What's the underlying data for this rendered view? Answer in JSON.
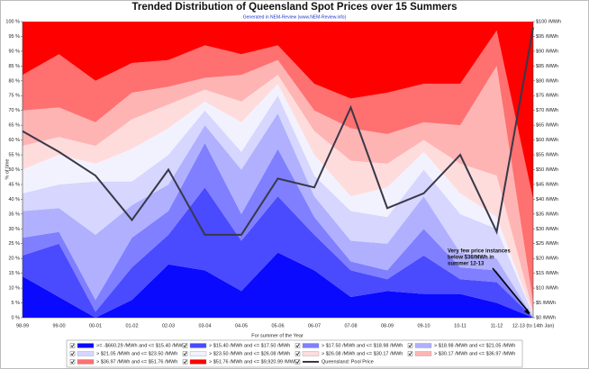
{
  "chart_data": {
    "type": "area",
    "stacked": true,
    "grid": false,
    "title": "Trended Distribution of Queensland Spot Prices over 15 Summers",
    "subtitle": "Generated in NEM-Review (www.NEM-Review.info)",
    "x_label": "For summer of the Year",
    "y_label": "% of time",
    "categories": [
      "98-99",
      "99-00",
      "00-01",
      "01-02",
      "02-03",
      "03-04",
      "04-05",
      "05-06",
      "06-07",
      "07-08",
      "08-09",
      "09-10",
      "10-11",
      "11-12",
      "12-13 (to 14th Jan)"
    ],
    "series": [
      {
        "name": ">= -$660.29 /MWh and <= $15.40 /MWh",
        "color": "#0a0aff",
        "values": [
          14,
          7,
          0,
          6,
          18,
          16,
          9,
          22,
          16,
          7,
          9,
          8,
          8,
          5,
          0
        ]
      },
      {
        "name": "> $15.40 /MWh and <= $17.50 /MWh",
        "color": "#4a4aff",
        "values": [
          7,
          18,
          2,
          11,
          10,
          28,
          17,
          19,
          12,
          9,
          4,
          13,
          5,
          7,
          0
        ]
      },
      {
        "name": "> $17.50 /MWh and <= $18.98 /MWh",
        "color": "#7f7fff",
        "values": [
          6,
          4,
          4,
          10,
          8,
          15,
          9,
          16,
          6,
          3,
          3,
          9,
          4,
          4,
          0
        ]
      },
      {
        "name": "> $18.98 /MWh and <= $21.05 /MWh",
        "color": "#b0b0ff",
        "values": [
          9,
          8,
          22,
          11,
          9,
          6,
          15,
          12,
          7,
          7,
          9,
          11,
          5,
          4,
          0
        ]
      },
      {
        "name": "> $21.05 /MWh and <= $23.50 /MWh",
        "color": "#d6d6ff",
        "values": [
          6,
          8,
          18,
          8,
          10,
          5,
          6,
          6,
          7,
          10,
          9,
          9,
          13,
          10,
          1
        ]
      },
      {
        "name": "> $23.50 /MWh and <= $26.08 /MWh",
        "color": "#f2f2ff",
        "values": [
          8,
          10,
          6,
          11,
          9,
          3,
          10,
          4,
          7,
          5,
          10,
          6,
          7,
          4,
          0
        ]
      },
      {
        "name": "> $26.08 /MWh and <= $30.17 /MWh",
        "color": "#ffdcdc",
        "values": [
          8,
          6,
          6,
          10,
          8,
          4,
          7,
          3,
          8,
          12,
          8,
          4,
          10,
          14,
          1
        ]
      },
      {
        "name": "> $30.17 /MWh and <= $36.97 /MWh",
        "color": "#ffb4b4",
        "values": [
          12,
          10,
          8,
          9,
          6,
          4,
          9,
          5,
          7,
          11,
          10,
          6,
          13,
          37,
          3
        ]
      },
      {
        "name": "> $36.97 /MWh and <= $51.76 /MWh",
        "color": "#ff7070",
        "values": [
          12,
          18,
          14,
          10,
          9,
          11,
          7,
          5,
          9,
          10,
          14,
          13,
          14,
          12,
          35
        ]
      },
      {
        "name": "> $51.76 /MWh and <= $9,920.99 /MWh",
        "color": "#ff0000",
        "values": [
          18,
          11,
          20,
          14,
          13,
          8,
          11,
          8,
          21,
          26,
          24,
          21,
          21,
          3,
          60
        ]
      },
      {
        "name": "Queensland: Pool Price",
        "color": "#383848",
        "type": "line",
        "axis": "y2",
        "values": [
          63,
          56,
          48,
          33,
          50,
          28,
          28,
          47,
          44,
          71,
          37,
          42,
          55,
          29,
          98
        ]
      }
    ],
    "ylim": [
      0,
      100
    ],
    "yticks": [
      {
        "value": 0,
        "label": "0 %"
      },
      {
        "value": 5,
        "label": "5 %"
      },
      {
        "value": 10,
        "label": "10 %"
      },
      {
        "value": 15,
        "label": "15 %"
      },
      {
        "value": 20,
        "label": "20 %"
      },
      {
        "value": 25,
        "label": "25 %"
      },
      {
        "value": 30,
        "label": "30 %"
      },
      {
        "value": 35,
        "label": "35 %"
      },
      {
        "value": 40,
        "label": "40 %"
      },
      {
        "value": 45,
        "label": "45 %"
      },
      {
        "value": 50,
        "label": "50 %"
      },
      {
        "value": 55,
        "label": "55 %"
      },
      {
        "value": 60,
        "label": "60 %"
      },
      {
        "value": 65,
        "label": "65 %"
      },
      {
        "value": 70,
        "label": "70 %"
      },
      {
        "value": 75,
        "label": "75 %"
      },
      {
        "value": 80,
        "label": "80 %"
      },
      {
        "value": 85,
        "label": "85 %"
      },
      {
        "value": 90,
        "label": "90 %"
      },
      {
        "value": 95,
        "label": "95 %"
      },
      {
        "value": 100,
        "label": "100 %"
      }
    ],
    "y2lim": [
      0,
      100
    ],
    "y2ticks": [
      {
        "value": 0,
        "label": "$0 /MWh"
      },
      {
        "value": 5,
        "label": "$5 /MWh"
      },
      {
        "value": 10,
        "label": "$10 /MWh"
      },
      {
        "value": 15,
        "label": "$15 /MWh"
      },
      {
        "value": 20,
        "label": "$20 /MWh"
      },
      {
        "value": 25,
        "label": "$25 /MWh"
      },
      {
        "value": 30,
        "label": "$30 /MWh"
      },
      {
        "value": 35,
        "label": "$35 /MWh"
      },
      {
        "value": 40,
        "label": "$40 /MWh"
      },
      {
        "value": 45,
        "label": "$45 /MWh"
      },
      {
        "value": 50,
        "label": "$50 /MWh"
      },
      {
        "value": 55,
        "label": "$55 /MWh"
      },
      {
        "value": 60,
        "label": "$60 /MWh"
      },
      {
        "value": 65,
        "label": "$65 /MWh"
      },
      {
        "value": 70,
        "label": "$70 /MWh"
      },
      {
        "value": 75,
        "label": "$75 /MWh"
      },
      {
        "value": 80,
        "label": "$80 /MWh"
      },
      {
        "value": 85,
        "label": "$85 /MWh"
      },
      {
        "value": 90,
        "label": "$90 /MWh"
      },
      {
        "value": 95,
        "label": "$95 /MWh"
      },
      {
        "value": 100,
        "label": "$100 /MWh"
      }
    ],
    "annotation": [
      "Very few price instances",
      "below $36/MWh in",
      "summer 12-13"
    ]
  }
}
